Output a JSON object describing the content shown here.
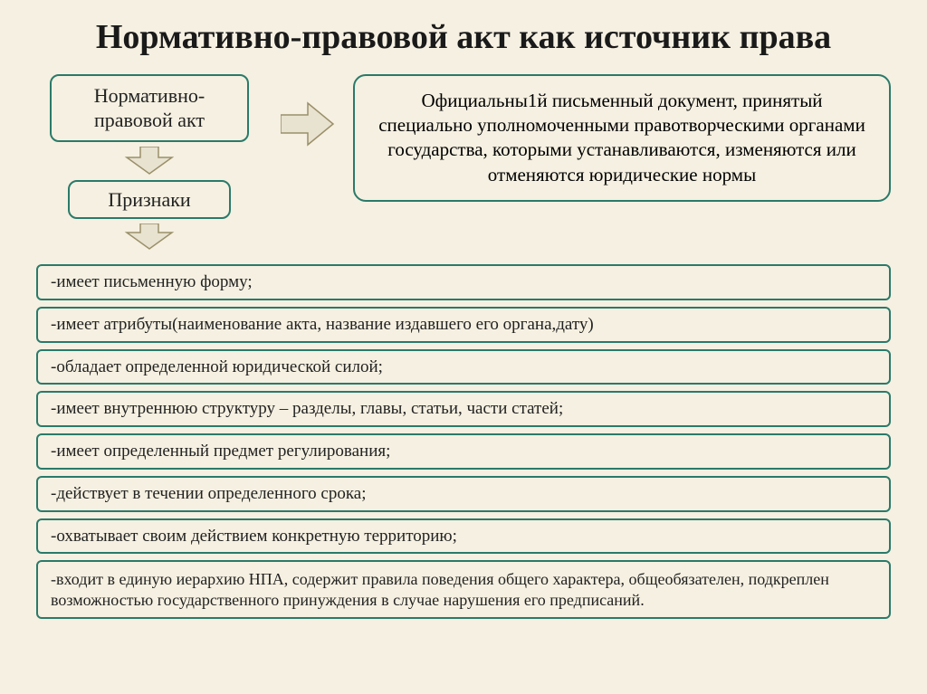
{
  "title": "Нормативно-правовой акт как источник права",
  "npa_box": "Нормативно-\nправовой акт",
  "priznaki_box": "Признаки",
  "definition": "Официальны1й письменный документ, принятый специально уполномоченными правотворческими органами государства, которыми устанавливаются, изменяются или отменяются юридические нормы",
  "features": [
    "-имеет письменную форму;",
    "-имеет атрибуты(наименование акта, название издавшего его органа,дату)",
    "-обладает определенной юридической силой;",
    "-имеет внутреннюю структуру – разделы, главы, статьи, части статей;",
    "-имеет определенный предмет регулирования;",
    "-действует в течении определенного срока;",
    "-охватывает своим действием конкретную территорию;",
    "-входит в единую иерархию НПА, содержит правила поведения общего характера, общеобязателен, подкреплен возможностью государственного принуждения в случае нарушения его предписаний."
  ],
  "colors": {
    "background": "#f5f0e1",
    "border": "#2a7a6a",
    "arrow_fill": "#e8e2d0",
    "arrow_stroke": "#9a8f6a",
    "text": "#1a1a1a"
  },
  "fonts": {
    "title_size": 38,
    "box_size": 22,
    "def_size": 21,
    "feature_size": 19
  }
}
